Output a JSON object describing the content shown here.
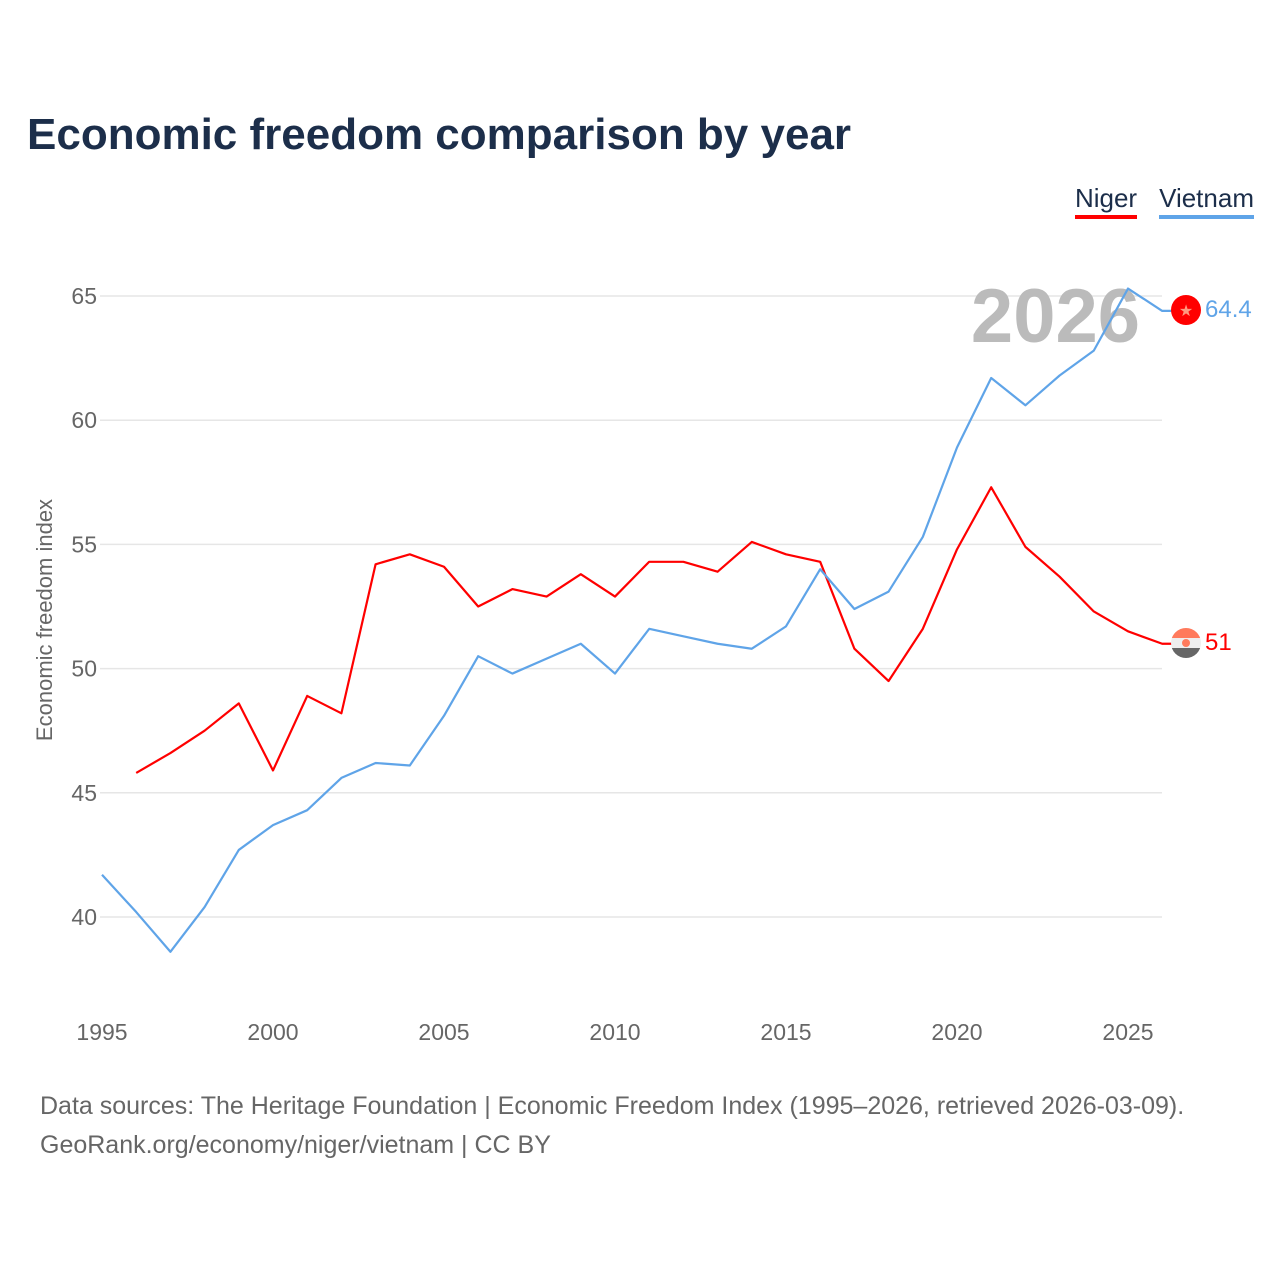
{
  "title": "Economic freedom comparison by year",
  "source_line1": "Data sources: The Heritage Foundation | Economic Freedom Index (1995–2026, retrieved 2026-03-09).",
  "source_line2": "GeoRank.org/economy/niger/vietnam | CC BY",
  "chart_data": {
    "type": "line",
    "title": "Economic freedom comparison by year",
    "xlabel": "",
    "ylabel": "Economic freedom index",
    "xlim": [
      1995,
      2026
    ],
    "ylim": [
      37,
      67
    ],
    "x_ticks": [
      "1995",
      "2000",
      "2005",
      "2010",
      "2015",
      "2020",
      "2025"
    ],
    "y_ticks": [
      "40",
      "45",
      "50",
      "55",
      "60",
      "65"
    ],
    "year_watermark": "2026",
    "legend_placement": "top-right",
    "series": [
      {
        "name": "Niger",
        "color": "#ff0000",
        "end_label": "51",
        "x": [
          1996,
          1997,
          1998,
          1999,
          2000,
          2001,
          2002,
          2003,
          2004,
          2005,
          2006,
          2007,
          2008,
          2009,
          2010,
          2011,
          2012,
          2013,
          2014,
          2015,
          2016,
          2017,
          2018,
          2019,
          2020,
          2021,
          2022,
          2023,
          2024,
          2025,
          2026
        ],
        "values": [
          45.8,
          46.6,
          47.5,
          48.6,
          45.9,
          48.9,
          48.2,
          54.2,
          54.6,
          54.1,
          52.5,
          53.2,
          52.9,
          53.8,
          52.9,
          54.3,
          54.3,
          53.9,
          55.1,
          54.6,
          54.3,
          50.8,
          49.5,
          51.6,
          54.8,
          57.3,
          54.9,
          53.7,
          52.3,
          51.5,
          51.0
        ]
      },
      {
        "name": "Vietnam",
        "color": "#5fa4e8",
        "end_label": "64.4",
        "x": [
          1995,
          1996,
          1997,
          1998,
          1999,
          2000,
          2001,
          2002,
          2003,
          2004,
          2005,
          2006,
          2007,
          2008,
          2009,
          2010,
          2011,
          2012,
          2013,
          2014,
          2015,
          2016,
          2017,
          2018,
          2019,
          2020,
          2021,
          2022,
          2023,
          2024,
          2025,
          2026
        ],
        "values": [
          41.7,
          40.2,
          38.6,
          40.4,
          42.7,
          43.7,
          44.3,
          45.6,
          46.2,
          46.1,
          48.1,
          50.5,
          49.8,
          50.4,
          51.0,
          49.8,
          51.6,
          51.3,
          51.0,
          50.8,
          51.7,
          54.0,
          52.4,
          53.1,
          55.3,
          58.9,
          61.7,
          60.6,
          61.8,
          62.8,
          65.3,
          64.4
        ]
      }
    ]
  }
}
